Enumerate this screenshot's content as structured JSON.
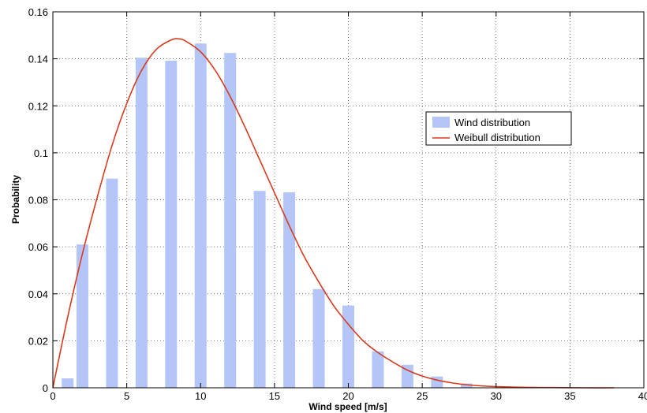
{
  "chart_data": {
    "type": "bar",
    "xlabel": "Wind speed [m/s]",
    "ylabel": "Probability",
    "xlim": [
      0,
      40
    ],
    "ylim": [
      0,
      0.16
    ],
    "xticks": [
      0,
      5,
      10,
      15,
      20,
      25,
      30,
      35,
      40
    ],
    "yticks": [
      0,
      0.02,
      0.04,
      0.06,
      0.08,
      0.1,
      0.12,
      0.14,
      0.16
    ],
    "xtick_labels": [
      "0",
      "5",
      "10",
      "15",
      "20",
      "25",
      "30",
      "35",
      "40"
    ],
    "ytick_labels": [
      "0",
      "0.02",
      "0.04",
      "0.06",
      "0.08",
      "0.1",
      "0.12",
      "0.14",
      "0.16"
    ],
    "grid": true,
    "legend_position": "right-center",
    "series": [
      {
        "name": "Wind distribution",
        "type": "bar",
        "color": "#b4c6f7",
        "x": [
          1,
          2,
          4,
          6,
          8,
          10,
          12,
          14,
          16,
          18,
          20,
          22,
          24,
          26,
          28
        ],
        "values": [
          0.004,
          0.061,
          0.089,
          0.1405,
          0.1392,
          0.1465,
          0.1425,
          0.0838,
          0.0832,
          0.042,
          0.035,
          0.0155,
          0.0098,
          0.0048,
          0.0018
        ]
      },
      {
        "name": "Weibull distribution",
        "type": "line",
        "color": "#d83a1e",
        "x": [
          0,
          1,
          2,
          3,
          4,
          5,
          6,
          7,
          8,
          8.5,
          9,
          10,
          11,
          12,
          13,
          14,
          15,
          16,
          17,
          18,
          19,
          20,
          21,
          22,
          23,
          24,
          25,
          26,
          27,
          28,
          29,
          30,
          32,
          34,
          36,
          38
        ],
        "values": [
          0.0,
          0.03,
          0.057,
          0.081,
          0.103,
          0.121,
          0.135,
          0.144,
          0.148,
          0.1485,
          0.1475,
          0.143,
          0.135,
          0.124,
          0.111,
          0.097,
          0.083,
          0.069,
          0.056,
          0.045,
          0.035,
          0.027,
          0.02,
          0.015,
          0.011,
          0.0075,
          0.005,
          0.0033,
          0.0021,
          0.0013,
          0.0008,
          0.0005,
          0.0002,
          0.0001,
          0.0,
          0.0
        ]
      }
    ]
  }
}
